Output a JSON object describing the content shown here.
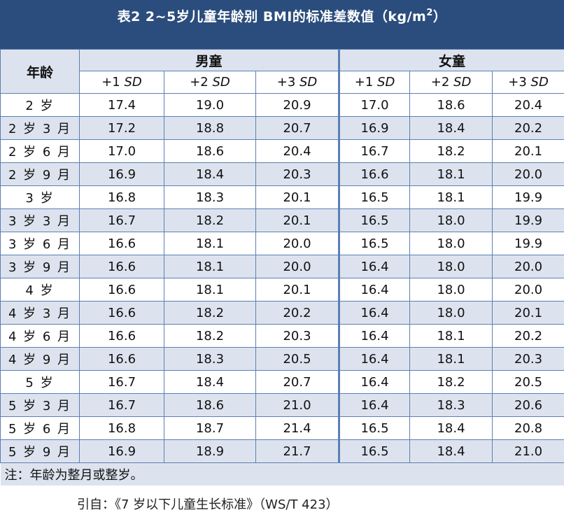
{
  "title": {
    "prefix": "表2 2~5岁儿童年龄别 BMI的标准差数值（kg/m",
    "superscript": "2",
    "suffix": "）"
  },
  "table": {
    "age_header": "年龄",
    "groups": [
      "男童",
      "女童"
    ],
    "sd_columns": [
      {
        "prefix": "+1 ",
        "sd": "SD"
      },
      {
        "prefix": "+2 ",
        "sd": "SD"
      },
      {
        "prefix": "+3 ",
        "sd": "SD"
      }
    ],
    "rows": [
      {
        "age": "2 岁",
        "boys": [
          "17.4",
          "19.0",
          "20.9"
        ],
        "girls": [
          "17.0",
          "18.6",
          "20.4"
        ]
      },
      {
        "age": "2 岁 3 月",
        "boys": [
          "17.2",
          "18.8",
          "20.7"
        ],
        "girls": [
          "16.9",
          "18.4",
          "20.2"
        ]
      },
      {
        "age": "2 岁 6 月",
        "boys": [
          "17.0",
          "18.6",
          "20.4"
        ],
        "girls": [
          "16.7",
          "18.2",
          "20.1"
        ]
      },
      {
        "age": "2 岁 9 月",
        "boys": [
          "16.9",
          "18.4",
          "20.3"
        ],
        "girls": [
          "16.6",
          "18.1",
          "20.0"
        ]
      },
      {
        "age": "3 岁",
        "boys": [
          "16.8",
          "18.3",
          "20.1"
        ],
        "girls": [
          "16.5",
          "18.1",
          "19.9"
        ]
      },
      {
        "age": "3 岁 3 月",
        "boys": [
          "16.7",
          "18.2",
          "20.1"
        ],
        "girls": [
          "16.5",
          "18.0",
          "19.9"
        ]
      },
      {
        "age": "3 岁 6 月",
        "boys": [
          "16.6",
          "18.1",
          "20.0"
        ],
        "girls": [
          "16.5",
          "18.0",
          "19.9"
        ]
      },
      {
        "age": "3 岁 9 月",
        "boys": [
          "16.6",
          "18.1",
          "20.0"
        ],
        "girls": [
          "16.4",
          "18.0",
          "20.0"
        ]
      },
      {
        "age": "4 岁",
        "boys": [
          "16.6",
          "18.1",
          "20.1"
        ],
        "girls": [
          "16.4",
          "18.0",
          "20.0"
        ]
      },
      {
        "age": "4 岁 3 月",
        "boys": [
          "16.6",
          "18.2",
          "20.2"
        ],
        "girls": [
          "16.4",
          "18.0",
          "20.1"
        ]
      },
      {
        "age": "4 岁 6 月",
        "boys": [
          "16.6",
          "18.2",
          "20.3"
        ],
        "girls": [
          "16.4",
          "18.1",
          "20.2"
        ]
      },
      {
        "age": "4 岁 9 月",
        "boys": [
          "16.6",
          "18.3",
          "20.5"
        ],
        "girls": [
          "16.4",
          "18.1",
          "20.3"
        ]
      },
      {
        "age": "5 岁",
        "boys": [
          "16.7",
          "18.4",
          "20.7"
        ],
        "girls": [
          "16.4",
          "18.2",
          "20.5"
        ]
      },
      {
        "age": "5 岁 3 月",
        "boys": [
          "16.7",
          "18.6",
          "21.0"
        ],
        "girls": [
          "16.4",
          "18.3",
          "20.6"
        ]
      },
      {
        "age": "5 岁 6 月",
        "boys": [
          "16.8",
          "18.7",
          "21.4"
        ],
        "girls": [
          "16.5",
          "18.4",
          "20.8"
        ]
      },
      {
        "age": "5 岁 9 月",
        "boys": [
          "16.9",
          "18.9",
          "21.7"
        ],
        "girls": [
          "16.5",
          "18.4",
          "21.0"
        ]
      }
    ],
    "note": "注：年龄为整月或整岁。"
  },
  "source": "引自：《7 岁以下儿童生长标准》（WS/T 423）",
  "colors": {
    "title_bg": "#2b4d7d",
    "stripe": "#dde3ee",
    "border": "#5b7fb4"
  }
}
